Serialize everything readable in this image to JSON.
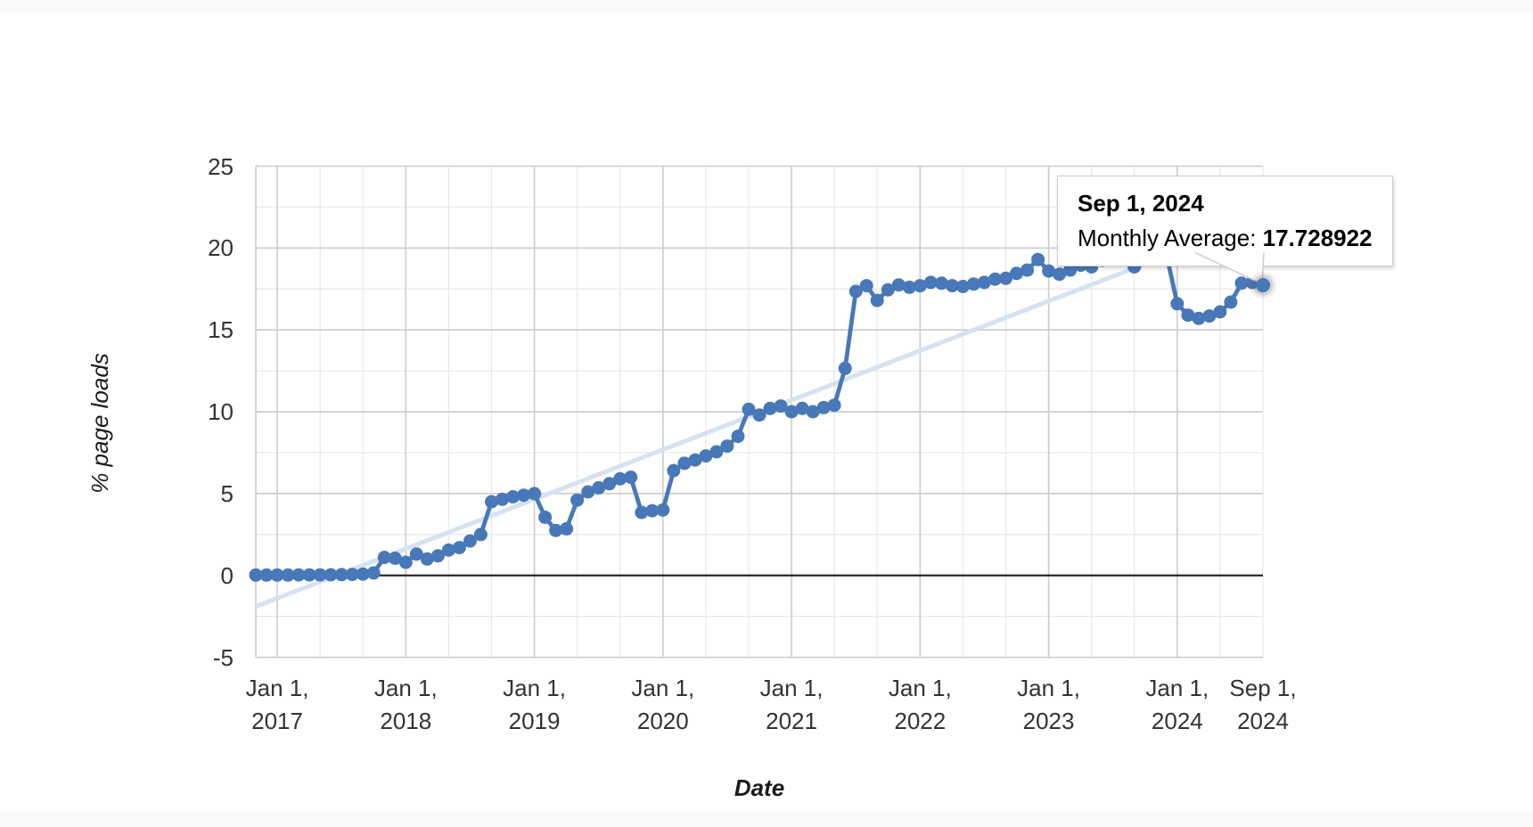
{
  "tooltip": {
    "title": "Sep 1, 2024",
    "label": "Monthly Average: ",
    "value": "17.728922"
  },
  "chart_data": {
    "type": "line",
    "title": "",
    "xlabel": "Date",
    "ylabel": "% page loads",
    "grid": true,
    "legend_position": "none",
    "series_color": "#4878b8",
    "trendline_color": "#d6e2f1",
    "ylim": [
      -5,
      25
    ],
    "y_axis": {
      "major_ticks": [
        25,
        20,
        15,
        10,
        5,
        0,
        -5
      ],
      "minor_ticks": [
        22.5,
        17.5,
        12.5,
        7.5,
        2.5,
        -2.5
      ]
    },
    "x_axis": {
      "ticks": [
        {
          "label_top": "Jan 1,",
          "label_bottom": "2017",
          "month_index": 2,
          "major": true
        },
        {
          "label_top": "Jan 1,",
          "label_bottom": "2018",
          "month_index": 14,
          "major": true
        },
        {
          "label_top": "Jan 1,",
          "label_bottom": "2019",
          "month_index": 26,
          "major": true
        },
        {
          "label_top": "Jan 1,",
          "label_bottom": "2020",
          "month_index": 38,
          "major": true
        },
        {
          "label_top": "Jan 1,",
          "label_bottom": "2021",
          "month_index": 50,
          "major": true
        },
        {
          "label_top": "Jan 1,",
          "label_bottom": "2022",
          "month_index": 62,
          "major": true
        },
        {
          "label_top": "Jan 1,",
          "label_bottom": "2023",
          "month_index": 74,
          "major": true
        },
        {
          "label_top": "Jan 1,",
          "label_bottom": "2024",
          "month_index": 86,
          "major": true
        },
        {
          "label_top": "Sep 1,",
          "label_bottom": "2024",
          "month_index": 94,
          "major": false
        }
      ]
    },
    "series": [
      {
        "name": "Monthly Average",
        "months": [
          "2016-11",
          "2016-12",
          "2017-01",
          "2017-02",
          "2017-03",
          "2017-04",
          "2017-05",
          "2017-06",
          "2017-07",
          "2017-08",
          "2017-09",
          "2017-10",
          "2017-11",
          "2017-12",
          "2018-01",
          "2018-02",
          "2018-03",
          "2018-04",
          "2018-05",
          "2018-06",
          "2018-07",
          "2018-08",
          "2018-09",
          "2018-10",
          "2018-11",
          "2018-12",
          "2019-01",
          "2019-02",
          "2019-03",
          "2019-04",
          "2019-05",
          "2019-06",
          "2019-07",
          "2019-08",
          "2019-09",
          "2019-10",
          "2019-11",
          "2019-12",
          "2020-01",
          "2020-02",
          "2020-03",
          "2020-04",
          "2020-05",
          "2020-06",
          "2020-07",
          "2020-08",
          "2020-09",
          "2020-10",
          "2020-11",
          "2020-12",
          "2021-01",
          "2021-02",
          "2021-03",
          "2021-04",
          "2021-05",
          "2021-06",
          "2021-07",
          "2021-08",
          "2021-09",
          "2021-10",
          "2021-11",
          "2021-12",
          "2022-01",
          "2022-02",
          "2022-03",
          "2022-04",
          "2022-05",
          "2022-06",
          "2022-07",
          "2022-08",
          "2022-09",
          "2022-10",
          "2022-11",
          "2022-12",
          "2023-01",
          "2023-02",
          "2023-03",
          "2023-04",
          "2023-05",
          "2023-06",
          "2023-07",
          "2023-08",
          "2023-09",
          "2023-10",
          "2023-11",
          "2023-12",
          "2024-01",
          "2024-02",
          "2024-03",
          "2024-04",
          "2024-05",
          "2024-06",
          "2024-07",
          "2024-08",
          "2024-09"
        ],
        "values": [
          0.02,
          0.02,
          0.02,
          0.02,
          0.03,
          0.03,
          0.03,
          0.04,
          0.05,
          0.06,
          0.08,
          0.15,
          1.1,
          1.05,
          0.8,
          1.3,
          1.0,
          1.2,
          1.55,
          1.7,
          2.1,
          2.5,
          4.5,
          4.65,
          4.8,
          4.9,
          5.0,
          3.55,
          2.75,
          2.85,
          4.6,
          5.1,
          5.35,
          5.6,
          5.9,
          6.0,
          3.85,
          3.95,
          4.0,
          6.4,
          6.85,
          7.05,
          7.3,
          7.55,
          7.9,
          8.5,
          10.15,
          9.8,
          10.2,
          10.35,
          10.0,
          10.2,
          10.0,
          10.25,
          10.4,
          12.65,
          17.35,
          17.7,
          16.8,
          17.45,
          17.75,
          17.6,
          17.7,
          17.9,
          17.85,
          17.7,
          17.65,
          17.8,
          17.9,
          18.1,
          18.15,
          18.45,
          18.65,
          19.3,
          18.6,
          18.4,
          18.65,
          18.95,
          18.85,
          19.25,
          19.4,
          19.35,
          18.85,
          19.3,
          19.5,
          19.6,
          16.6,
          15.9,
          15.7,
          15.85,
          16.1,
          16.7,
          17.85,
          17.9,
          17.728922
        ]
      }
    ],
    "trendline": {
      "start_month": "2016-11",
      "start_value": -1.9,
      "end_month": "2024-09",
      "end_value": 21.8
    },
    "selected_point": {
      "month": "2024-09",
      "value": 17.728922
    }
  }
}
